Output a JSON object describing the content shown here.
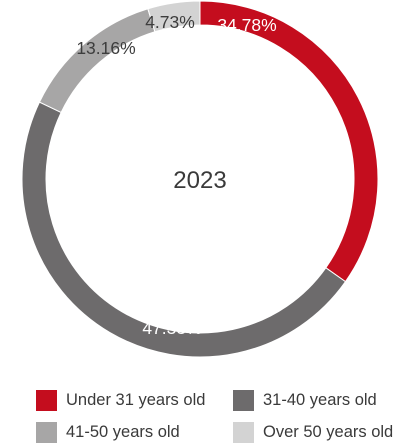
{
  "chart_data": {
    "type": "pie",
    "donut": true,
    "center_label": "2023",
    "series": [
      {
        "label": "Under 31 years old",
        "value": 34.78,
        "display": "34.78%",
        "color": "#c40d1e"
      },
      {
        "label": "31-40 years old",
        "value": 47.33,
        "display": "47.33%",
        "color": "#6d6b6c"
      },
      {
        "label": "41-50 years old",
        "value": 13.16,
        "display": "13.16%",
        "color": "#a7a6a6"
      },
      {
        "label": "Over 50 years old",
        "value": 4.73,
        "display": "4.73%",
        "color": "#d3d3d3"
      }
    ],
    "legend": {
      "placement": "bottom"
    }
  }
}
